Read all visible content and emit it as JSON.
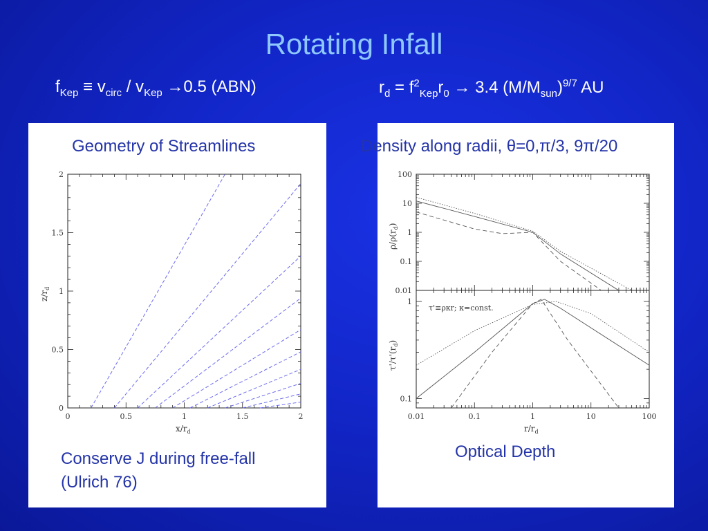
{
  "slide": {
    "title": "Rotating Infall",
    "formula_left": {
      "f": "f",
      "kep_sub": "Kep",
      "equiv": " ≡ v",
      "circ_sub": "circ",
      "slash": " / v",
      "kep_sub2": "Kep",
      "rest": " →0.5 (ABN)"
    },
    "formula_right": {
      "r": "r",
      "d_sub": "d",
      "eq": " = f",
      "sq_sup": "2",
      "kep_sub": "Kep",
      "r0": "r",
      "zero_sub": "0",
      "arrow": " → 3.4 (M/M",
      "sun_sub": "sun",
      "close": ")",
      "exp_sup": "9/7",
      "au": " AU"
    }
  },
  "left_panel": {
    "caption_top": "Geometry of Streamlines",
    "caption_bottom_1": "Conserve J during free-fall",
    "caption_bottom_2": "(Ulrich 76)",
    "x_ticks": [
      "0",
      "0.5",
      "1",
      "1.5",
      "2"
    ],
    "y_ticks": [
      "0",
      "0.5",
      "1",
      "1.5",
      "2"
    ],
    "xlabel": "x/r",
    "xlabel_sub": "d",
    "ylabel": "z/r",
    "ylabel_sub": "d"
  },
  "right_panel": {
    "caption_top": "Density along radii, θ=0,π/3, 9π/20",
    "caption_bottom": "Optical Depth",
    "top_y_ticks": [
      "100",
      "10",
      "1",
      "0.1",
      "0.01"
    ],
    "top_ylabel": "ρ/ρ(r",
    "top_ylabel_sub": "d",
    "bottom_y_ticks": [
      "1",
      "0.1"
    ],
    "bottom_ylabel": "τ'/τ'(r",
    "bottom_ylabel_sub": "d",
    "x_ticks": [
      "0.01",
      "0.1",
      "1",
      "10",
      "100"
    ],
    "xlabel": "r/r",
    "xlabel_sub": "d",
    "annotation": "τ'≡ρκr;  κ=const."
  },
  "colors": {
    "background": "#1226c8",
    "title": "#8ec8ff",
    "formula": "#ffffff",
    "caption": "#2434a8",
    "streamline": "#6b6bf0",
    "curve": "#555555"
  },
  "chart_data": [
    {
      "type": "line",
      "xlabel": "x/r_d",
      "ylabel": "z/r_d",
      "xlim": [
        0,
        2
      ],
      "ylim": [
        0,
        2
      ],
      "series": [
        {
          "x": [
            0.2,
            1.35
          ],
          "y": [
            0,
            2.0
          ]
        },
        {
          "x": [
            0.4,
            2.0
          ],
          "y": [
            0,
            1.92
          ]
        },
        {
          "x": [
            0.6,
            2.0
          ],
          "y": [
            0,
            1.3
          ]
        },
        {
          "x": [
            0.75,
            2.0
          ],
          "y": [
            0,
            0.94
          ]
        },
        {
          "x": [
            0.9,
            2.0
          ],
          "y": [
            0,
            0.67
          ]
        },
        {
          "x": [
            1.05,
            2.0
          ],
          "y": [
            0,
            0.48
          ]
        },
        {
          "x": [
            1.2,
            2.0
          ],
          "y": [
            0,
            0.33
          ]
        },
        {
          "x": [
            1.35,
            2.0
          ],
          "y": [
            0,
            0.21
          ]
        },
        {
          "x": [
            1.5,
            2.0
          ],
          "y": [
            0,
            0.12
          ]
        },
        {
          "x": [
            1.65,
            2.0
          ],
          "y": [
            0,
            0.05
          ]
        }
      ]
    },
    {
      "type": "line",
      "xlabel": "r/r_d",
      "ylabel": "ρ/ρ(r_d)",
      "xscale": "log",
      "yscale": "log",
      "xlim": [
        0.01,
        100
      ],
      "ylim": [
        0.01,
        100
      ],
      "series": [
        {
          "style": "solid",
          "x": [
            0.01,
            0.1,
            1,
            3,
            30
          ],
          "y": [
            12,
            3.5,
            1,
            0.18,
            0.01
          ]
        },
        {
          "style": "dotted",
          "x": [
            0.01,
            0.1,
            1,
            3,
            50
          ],
          "y": [
            16,
            4.5,
            1.1,
            0.22,
            0.01
          ]
        },
        {
          "style": "dashed",
          "x": [
            0.01,
            0.1,
            0.3,
            1,
            3,
            15
          ],
          "y": [
            5,
            1.3,
            0.9,
            1,
            0.1,
            0.01
          ]
        }
      ]
    },
    {
      "type": "line",
      "xlabel": "r/r_d",
      "ylabel": "τ'/τ'(r_d)",
      "xscale": "log",
      "yscale": "log",
      "xlim": [
        0.01,
        100
      ],
      "ylim": [
        0.08,
        1.3
      ],
      "series": [
        {
          "style": "solid",
          "x": [
            0.01,
            0.1,
            1,
            1.6,
            3,
            100
          ],
          "y": [
            0.1,
            0.3,
            0.95,
            1.05,
            0.85,
            0.22
          ]
        },
        {
          "style": "dotted",
          "x": [
            0.01,
            0.1,
            1,
            2.5,
            10,
            100
          ],
          "y": [
            0.22,
            0.5,
            0.93,
            1.0,
            0.75,
            0.3
          ]
        },
        {
          "style": "dashed",
          "x": [
            0.04,
            0.2,
            1,
            1.4,
            4,
            30
          ],
          "y": [
            0.08,
            0.3,
            0.95,
            1.05,
            0.4,
            0.08
          ]
        }
      ]
    }
  ]
}
